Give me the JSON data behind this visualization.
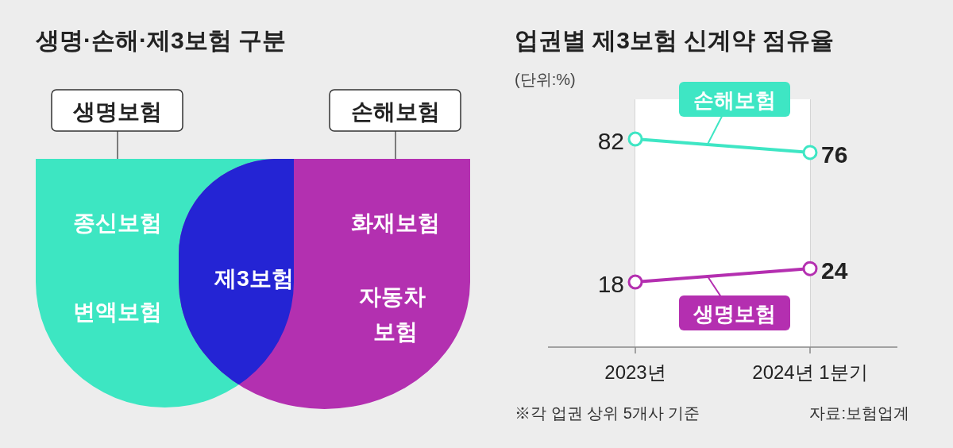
{
  "chart_data": [
    {
      "type": "other",
      "title": "생명·손해·제3보험 구분",
      "annotations": [
        "생명보험",
        "손해보험",
        "종신보험",
        "변액보험",
        "제3보험",
        "화재보험",
        "자동차 보험"
      ]
    },
    {
      "type": "line",
      "title": "업권별 제3보험 신계약 점유율",
      "subtitle": "(단위:%)",
      "categories": [
        "2023년",
        "2024년 1분기"
      ],
      "series": [
        {
          "name": "손해보험",
          "color": "#3ee6c4",
          "values": [
            82,
            76
          ]
        },
        {
          "name": "생명보험",
          "color": "#b42fb0",
          "values": [
            18,
            24
          ]
        }
      ],
      "bands": [
        {
          "axis": "x",
          "from": "2023년",
          "to": "2024년 1분기",
          "color": "#ffffff"
        }
      ],
      "data_labels": true,
      "marker": "circle",
      "legend": false,
      "annotations": [
        "※각 업권 상위 5개사 기준",
        "자료:보험업계"
      ]
    }
  ]
}
